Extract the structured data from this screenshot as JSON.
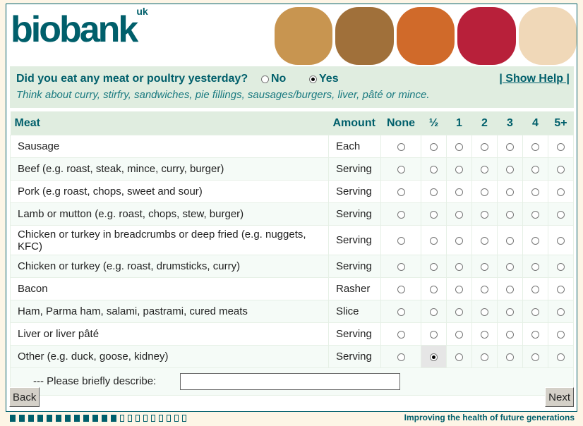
{
  "brand": {
    "logo_text": "biobank",
    "logo_sup": "uk",
    "tagline": "Improving the health of future generations"
  },
  "question": {
    "text": "Did you eat any meat or poultry yesterday?",
    "options": [
      {
        "label": "No",
        "selected": false
      },
      {
        "label": "Yes",
        "selected": true
      }
    ],
    "help": "| Show Help |",
    "hint": "Think about curry, stirfry, sandwiches, pie fillings, sausages/burgers, liver, pâté or mince."
  },
  "table": {
    "headers": [
      "Meat",
      "Amount",
      "None",
      "½",
      "1",
      "2",
      "3",
      "4",
      "5+"
    ],
    "rows": [
      {
        "item": "Sausage",
        "amount": "Each",
        "selected": null
      },
      {
        "item": "Beef (e.g. roast, steak, mince, curry, burger)",
        "amount": "Serving",
        "selected": null
      },
      {
        "item": "Pork (e.g roast, chops, sweet and sour)",
        "amount": "Serving",
        "selected": null
      },
      {
        "item": "Lamb or mutton (e.g. roast, chops, stew, burger)",
        "amount": "Serving",
        "selected": null
      },
      {
        "item": "Chicken or turkey in breadcrumbs or deep fried (e.g. nuggets, KFC)",
        "amount": "Serving",
        "selected": null
      },
      {
        "item": "Chicken or turkey (e.g. roast, drumsticks, curry)",
        "amount": "Serving",
        "selected": null
      },
      {
        "item": "Bacon",
        "amount": "Rasher",
        "selected": null
      },
      {
        "item": "Ham, Parma ham, salami, pastrami, cured meats",
        "amount": "Slice",
        "selected": null
      },
      {
        "item": "Liver or liver pâté",
        "amount": "Serving",
        "selected": null
      },
      {
        "item": "Other (e.g. duck, goose, kidney)",
        "amount": "Serving",
        "selected": "½"
      }
    ],
    "describe_label": "--- Please briefly describe:",
    "describe_value": ""
  },
  "buttons": {
    "back": "Back",
    "next": "Next"
  },
  "progress": {
    "completed": 12,
    "total": 21
  },
  "colors": {
    "brand": "#005f6b",
    "panel": "#e0ede0",
    "page": "#fdf5e6"
  }
}
